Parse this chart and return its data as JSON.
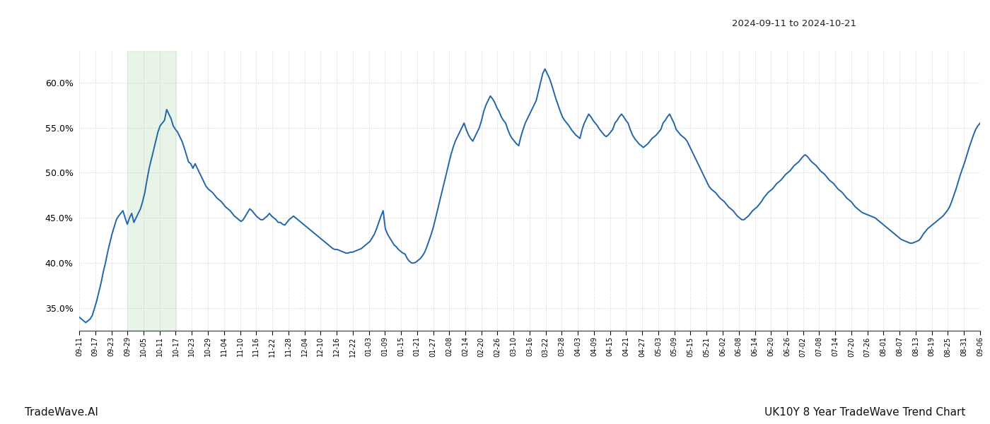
{
  "title_top_right": "2024-09-11 to 2024-10-21",
  "label_bottom_left": "TradeWave.AI",
  "label_bottom_right": "UK10Y 8 Year TradeWave Trend Chart",
  "line_color": "#2166aa",
  "line_width": 1.4,
  "background_color": "#ffffff",
  "grid_color": "#cccccc",
  "grid_linestyle": ":",
  "shaded_region_color": "#d4ecd4",
  "shaded_region_alpha": 0.55,
  "ylim": [
    0.325,
    0.635
  ],
  "yticks": [
    0.35,
    0.4,
    0.45,
    0.5,
    0.55,
    0.6
  ],
  "x_tick_labels": [
    "09-11",
    "09-17",
    "09-23",
    "09-29",
    "10-05",
    "10-11",
    "10-17",
    "10-23",
    "10-29",
    "11-04",
    "11-10",
    "11-16",
    "11-22",
    "11-28",
    "12-04",
    "12-10",
    "12-16",
    "12-22",
    "01-03",
    "01-09",
    "01-15",
    "01-21",
    "01-27",
    "02-08",
    "02-14",
    "02-20",
    "02-26",
    "03-10",
    "03-16",
    "03-22",
    "03-28",
    "04-03",
    "04-09",
    "04-15",
    "04-21",
    "04-27",
    "05-03",
    "05-09",
    "05-15",
    "05-21",
    "06-02",
    "06-08",
    "06-14",
    "06-20",
    "06-26",
    "07-02",
    "07-08",
    "07-14",
    "07-20",
    "07-26",
    "08-01",
    "08-07",
    "08-13",
    "08-19",
    "08-25",
    "08-31",
    "09-06"
  ],
  "shaded_x_start_label": "09-29",
  "shaded_x_end_label": "10-17",
  "values": [
    0.34,
    0.338,
    0.336,
    0.334,
    0.336,
    0.338,
    0.342,
    0.35,
    0.358,
    0.368,
    0.378,
    0.39,
    0.4,
    0.412,
    0.422,
    0.432,
    0.44,
    0.448,
    0.452,
    0.455,
    0.458,
    0.45,
    0.443,
    0.45,
    0.455,
    0.445,
    0.45,
    0.455,
    0.46,
    0.468,
    0.478,
    0.492,
    0.505,
    0.515,
    0.525,
    0.535,
    0.545,
    0.552,
    0.555,
    0.558,
    0.57,
    0.565,
    0.56,
    0.552,
    0.548,
    0.545,
    0.54,
    0.535,
    0.528,
    0.52,
    0.512,
    0.51,
    0.505,
    0.51,
    0.505,
    0.5,
    0.495,
    0.49,
    0.485,
    0.482,
    0.48,
    0.478,
    0.475,
    0.472,
    0.47,
    0.468,
    0.465,
    0.462,
    0.46,
    0.458,
    0.455,
    0.452,
    0.45,
    0.448,
    0.446,
    0.448,
    0.452,
    0.456,
    0.46,
    0.458,
    0.455,
    0.452,
    0.45,
    0.448,
    0.448,
    0.45,
    0.452,
    0.455,
    0.452,
    0.45,
    0.448,
    0.445,
    0.445,
    0.443,
    0.442,
    0.445,
    0.448,
    0.45,
    0.452,
    0.45,
    0.448,
    0.446,
    0.444,
    0.442,
    0.44,
    0.438,
    0.436,
    0.434,
    0.432,
    0.43,
    0.428,
    0.426,
    0.424,
    0.422,
    0.42,
    0.418,
    0.416,
    0.415,
    0.415,
    0.414,
    0.413,
    0.412,
    0.411,
    0.411,
    0.412,
    0.412,
    0.413,
    0.414,
    0.415,
    0.416,
    0.418,
    0.42,
    0.422,
    0.424,
    0.428,
    0.432,
    0.438,
    0.445,
    0.452,
    0.458,
    0.438,
    0.432,
    0.428,
    0.424,
    0.42,
    0.418,
    0.415,
    0.413,
    0.411,
    0.41,
    0.405,
    0.402,
    0.4,
    0.4,
    0.401,
    0.403,
    0.405,
    0.408,
    0.412,
    0.418,
    0.425,
    0.432,
    0.44,
    0.45,
    0.46,
    0.47,
    0.48,
    0.49,
    0.5,
    0.51,
    0.52,
    0.528,
    0.535,
    0.54,
    0.545,
    0.55,
    0.555,
    0.548,
    0.542,
    0.538,
    0.535,
    0.54,
    0.545,
    0.55,
    0.558,
    0.568,
    0.575,
    0.58,
    0.585,
    0.582,
    0.578,
    0.572,
    0.568,
    0.562,
    0.558,
    0.555,
    0.548,
    0.542,
    0.538,
    0.535,
    0.532,
    0.53,
    0.54,
    0.548,
    0.555,
    0.56,
    0.565,
    0.57,
    0.575,
    0.58,
    0.59,
    0.6,
    0.61,
    0.615,
    0.61,
    0.605,
    0.598,
    0.59,
    0.582,
    0.575,
    0.568,
    0.562,
    0.558,
    0.555,
    0.552,
    0.548,
    0.545,
    0.542,
    0.54,
    0.538,
    0.548,
    0.555,
    0.56,
    0.565,
    0.562,
    0.558,
    0.555,
    0.552,
    0.548,
    0.545,
    0.542,
    0.54,
    0.542,
    0.545,
    0.548,
    0.555,
    0.558,
    0.562,
    0.565,
    0.562,
    0.558,
    0.555,
    0.548,
    0.542,
    0.538,
    0.535,
    0.532,
    0.53,
    0.528,
    0.53,
    0.532,
    0.535,
    0.538,
    0.54,
    0.542,
    0.545,
    0.548,
    0.555,
    0.558,
    0.562,
    0.565,
    0.56,
    0.555,
    0.548,
    0.545,
    0.542,
    0.54,
    0.538,
    0.535,
    0.53,
    0.525,
    0.52,
    0.515,
    0.51,
    0.505,
    0.5,
    0.495,
    0.49,
    0.485,
    0.482,
    0.48,
    0.478,
    0.475,
    0.472,
    0.47,
    0.468,
    0.465,
    0.462,
    0.46,
    0.458,
    0.455,
    0.452,
    0.45,
    0.448,
    0.448,
    0.45,
    0.452,
    0.455,
    0.458,
    0.46,
    0.462,
    0.465,
    0.468,
    0.472,
    0.475,
    0.478,
    0.48,
    0.482,
    0.485,
    0.488,
    0.49,
    0.492,
    0.495,
    0.498,
    0.5,
    0.502,
    0.505,
    0.508,
    0.51,
    0.512,
    0.515,
    0.518,
    0.52,
    0.518,
    0.515,
    0.512,
    0.51,
    0.508,
    0.505,
    0.502,
    0.5,
    0.498,
    0.495,
    0.492,
    0.49,
    0.488,
    0.485,
    0.482,
    0.48,
    0.478,
    0.475,
    0.472,
    0.47,
    0.468,
    0.465,
    0.462,
    0.46,
    0.458,
    0.456,
    0.455,
    0.454,
    0.453,
    0.452,
    0.451,
    0.45,
    0.448,
    0.446,
    0.444,
    0.442,
    0.44,
    0.438,
    0.436,
    0.434,
    0.432,
    0.43,
    0.428,
    0.426,
    0.425,
    0.424,
    0.423,
    0.422,
    0.422,
    0.423,
    0.424,
    0.425,
    0.428,
    0.432,
    0.435,
    0.438,
    0.44,
    0.442,
    0.444,
    0.446,
    0.448,
    0.45,
    0.452,
    0.455,
    0.458,
    0.462,
    0.468,
    0.475,
    0.482,
    0.49,
    0.498,
    0.505,
    0.512,
    0.52,
    0.528,
    0.535,
    0.542,
    0.548,
    0.552,
    0.555
  ]
}
